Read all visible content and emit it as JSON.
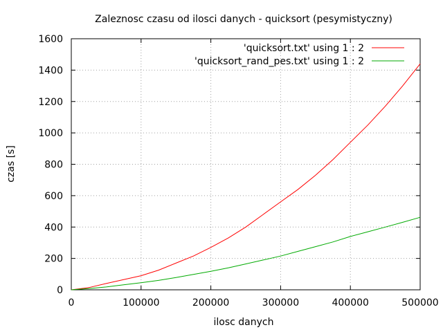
{
  "chart_data": {
    "type": "line",
    "title": "Zaleznosc czasu od ilosci danych - quicksort (pesymistyczny)",
    "xlabel": "ilosc danych",
    "ylabel": "czas [s]",
    "xlim": [
      0,
      500000
    ],
    "ylim": [
      0,
      1600
    ],
    "xticks": [
      0,
      100000,
      200000,
      300000,
      400000,
      500000
    ],
    "yticks": [
      0,
      200,
      400,
      600,
      800,
      1000,
      1200,
      1400,
      1600
    ],
    "grid": true,
    "legend_position": "top-right",
    "series": [
      {
        "name": "'quicksort.txt' using 1 : 2",
        "color": "#ff0000",
        "x": [
          0,
          25000,
          50000,
          75000,
          100000,
          125000,
          150000,
          175000,
          200000,
          225000,
          250000,
          275000,
          300000,
          325000,
          350000,
          375000,
          400000,
          425000,
          450000,
          475000,
          500000
        ],
        "y": [
          0,
          14,
          40,
          65,
          90,
          125,
          170,
          215,
          270,
          330,
          400,
          480,
          560,
          640,
          730,
          830,
          940,
          1050,
          1170,
          1300,
          1440
        ]
      },
      {
        "name": "'quicksort_rand_pes.txt' using 1 : 2",
        "color": "#00aa00",
        "x": [
          0,
          25000,
          50000,
          75000,
          100000,
          125000,
          150000,
          175000,
          200000,
          225000,
          250000,
          275000,
          300000,
          325000,
          350000,
          375000,
          400000,
          425000,
          450000,
          475000,
          500000
        ],
        "y": [
          0,
          8,
          18,
          32,
          45,
          60,
          78,
          98,
          118,
          140,
          165,
          190,
          215,
          245,
          275,
          305,
          340,
          370,
          400,
          430,
          462
        ]
      }
    ]
  }
}
